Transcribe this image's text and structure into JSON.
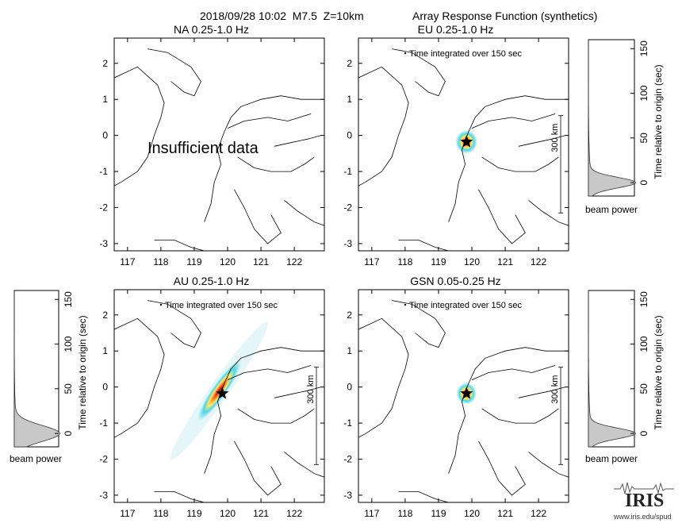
{
  "header": {
    "event": "2018/09/28 10:02  M7.5  Z=10km",
    "title": "Array Response Function (synthetics)"
  },
  "chart_data": [
    {
      "type": "heatmap",
      "title": "NA  0.25-1.0 Hz",
      "xticks": [
        117,
        118,
        119,
        120,
        121,
        122
      ],
      "yticks": [
        2,
        1,
        0,
        -1,
        -2,
        -3
      ],
      "xlim": [
        116.6,
        122.9
      ],
      "ylim": [
        -3.2,
        2.7
      ],
      "annotation": "Insufficient data",
      "integration_note": "",
      "scale_label": ""
    },
    {
      "type": "heatmap",
      "title": "EU  0.25-1.0 Hz",
      "xticks": [
        117,
        118,
        119,
        120,
        121,
        122
      ],
      "yticks": [
        2,
        1,
        0,
        -1,
        -2,
        -3
      ],
      "xlim": [
        116.6,
        122.9
      ],
      "ylim": [
        -3.2,
        2.7
      ],
      "annotation": "",
      "integration_note": "Time integrated over 150 sec",
      "scale_label": "300 km",
      "epicenter": [
        119.84,
        -0.18
      ],
      "peak": [
        119.84,
        -0.18
      ],
      "spread_deg": [
        0.35,
        0.35
      ],
      "orientation_deg": 0
    },
    {
      "type": "heatmap",
      "title": "AU  0.25-1.0 Hz",
      "xticks": [
        117,
        118,
        119,
        120,
        121,
        122
      ],
      "yticks": [
        2,
        1,
        0,
        -1,
        -2,
        -3
      ],
      "xlim": [
        116.6,
        122.9
      ],
      "ylim": [
        -3.2,
        2.7
      ],
      "annotation": "",
      "integration_note": "Time integrated over 150 sec",
      "scale_label": "300 km",
      "epicenter": [
        119.84,
        -0.18
      ],
      "peak": [
        119.75,
        -0.1
      ],
      "spread_deg": [
        1.2,
        0.22
      ],
      "orientation_deg": -55
    },
    {
      "type": "heatmap",
      "title": "GSN  0.05-0.25 Hz",
      "xticks": [
        117,
        118,
        119,
        120,
        121,
        122
      ],
      "yticks": [
        2,
        1,
        0,
        -1,
        -2,
        -3
      ],
      "xlim": [
        116.6,
        122.9
      ],
      "ylim": [
        -3.2,
        2.7
      ],
      "annotation": "",
      "integration_note": "Time integrated over 150 sec",
      "scale_label": "300 km",
      "epicenter": [
        119.84,
        -0.18
      ],
      "peak": [
        119.84,
        -0.18
      ],
      "spread_deg": [
        0.32,
        0.32
      ],
      "orientation_deg": 0
    },
    {
      "type": "area",
      "xlabel": "beam power",
      "ylabel": "Time relative to origin (sec)",
      "yticks": [
        150,
        100,
        50,
        0
      ],
      "ylim": [
        -15,
        160
      ],
      "peak_time": 0,
      "width_sec": 6
    },
    {
      "type": "area",
      "xlabel": "beam power",
      "ylabel": "Time relative to origin (sec)",
      "yticks": [
        150,
        100,
        50,
        0
      ],
      "ylim": [
        -15,
        160
      ],
      "peak_time": 0,
      "width_sec": 9
    },
    {
      "type": "area",
      "xlabel": "beam power",
      "ylabel": "Time relative to origin (sec)",
      "yticks": [
        150,
        100,
        50,
        0
      ],
      "ylim": [
        -15,
        160
      ],
      "peak_time": 0,
      "width_sec": 6
    }
  ],
  "logo": {
    "name": "IRIS",
    "url": "www.iris.edu/spud"
  }
}
